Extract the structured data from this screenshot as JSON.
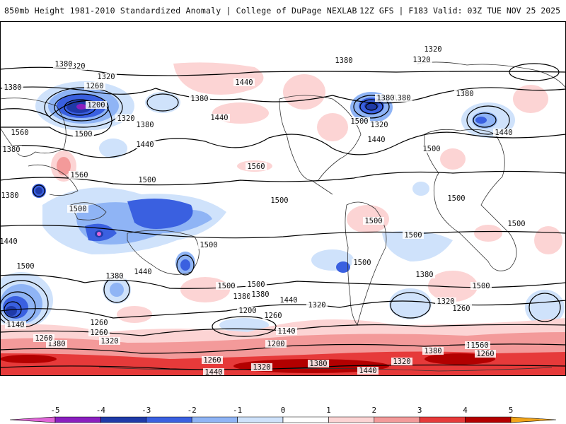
{
  "header": {
    "title": "850mb Height 1981-2010 Standardized Anomaly | College of DuPage NEXLAB",
    "run_info": "12Z GFS | F183 Valid: 03Z TUE NOV 25 2025"
  },
  "map": {
    "contour_labels": [
      "1320",
      "1320",
      "1320",
      "1380",
      "1380",
      "1260",
      "1200",
      "1440",
      "1380",
      "1320",
      "1380",
      "1440",
      "1500",
      "1380",
      "1500",
      "1380",
      "1440",
      "1320",
      "1380",
      "1440",
      "1560",
      "1560",
      "1380",
      "1440",
      "1560",
      "1500",
      "1380",
      "1500",
      "1440",
      "1500",
      "1500",
      "1500",
      "1500",
      "1500",
      "1500",
      "1500",
      "1500",
      "1500",
      "1380",
      "1440",
      "1500",
      "1380",
      "1320",
      "1260",
      "1500",
      "1380",
      "1140",
      "1260",
      "1320",
      "1260",
      "1200",
      "1140",
      "1320",
      "1440",
      "1380",
      "1260",
      "1200",
      "1260",
      "1320",
      "1380",
      "1440",
      "1440",
      "1380",
      "1260",
      "1320",
      "1380",
      "1440",
      "1560",
      "1500",
      "1380",
      "1320",
      "1260"
    ]
  },
  "legend": {
    "ticks": [
      "-5",
      "-4",
      "-3",
      "-2",
      "-1",
      "0",
      "1",
      "2",
      "3",
      "4",
      "5"
    ],
    "colors": [
      "#e066d8",
      "#8a1fbf",
      "#1f3aa8",
      "#3a60e0",
      "#8fb4f5",
      "#cfe2fb",
      "#ffffff",
      "#fcd4d4",
      "#f39a9a",
      "#e63a3a",
      "#b30000",
      "#f2a51a"
    ]
  }
}
